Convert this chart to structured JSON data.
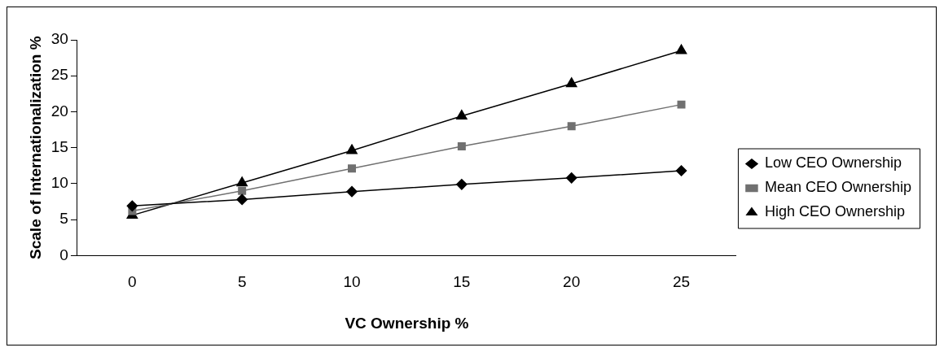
{
  "chart_data": {
    "type": "line",
    "xlabel": "VC Ownership %",
    "ylabel": "Scale of Internationalization %",
    "categories": [
      "0",
      "5",
      "10",
      "15",
      "20",
      "25"
    ],
    "series": [
      {
        "name": "Low CEO Ownership",
        "color": "#000000",
        "marker": "diamond",
        "values": [
          6.9,
          7.8,
          8.9,
          9.9,
          10.8,
          11.8
        ]
      },
      {
        "name": "Mean CEO Ownership",
        "color": "#707070",
        "marker": "square",
        "values": [
          6.2,
          9.0,
          12.1,
          15.2,
          18.0,
          21.0
        ]
      },
      {
        "name": "High CEO Ownership",
        "color": "#000000",
        "marker": "triangle",
        "values": [
          5.6,
          10.1,
          14.6,
          19.4,
          23.9,
          28.5
        ]
      }
    ],
    "ylim": [
      0,
      30
    ],
    "yticks": [
      0,
      5,
      10,
      15,
      20,
      25,
      30
    ],
    "grid": false,
    "legend": "right",
    "line_style": "solid"
  }
}
